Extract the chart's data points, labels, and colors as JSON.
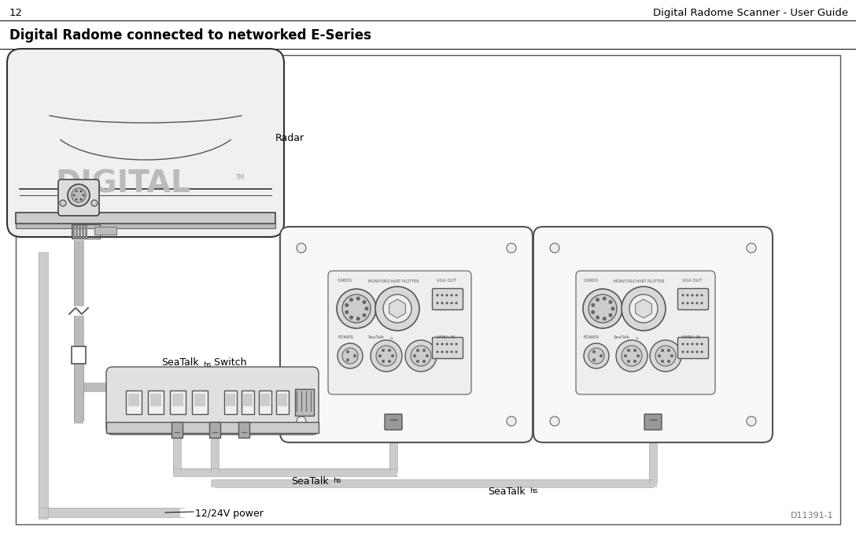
{
  "page_number": "12",
  "page_title_right": "Digital Radome Scanner - User Guide",
  "section_title": "Digital Radome connected to networked E-Series",
  "diagram_ref": "D11391-1",
  "label_radar": "Radar",
  "label_switch": "SeaTalk",
  "label_switch_super": "hs",
  "label_switch_suffix": " Switch",
  "label_seatalkhs_1": "SeaTalk",
  "label_seatalkhs_2": "SeaTalk",
  "label_hs_super": "hs",
  "label_power": "12/24V power",
  "bg_color": "#ffffff",
  "outline_color": "#333333",
  "gray_fill": "#d8d8d8",
  "mid_gray": "#aaaaaa",
  "dark_gray": "#666666",
  "light_border": "#999999"
}
